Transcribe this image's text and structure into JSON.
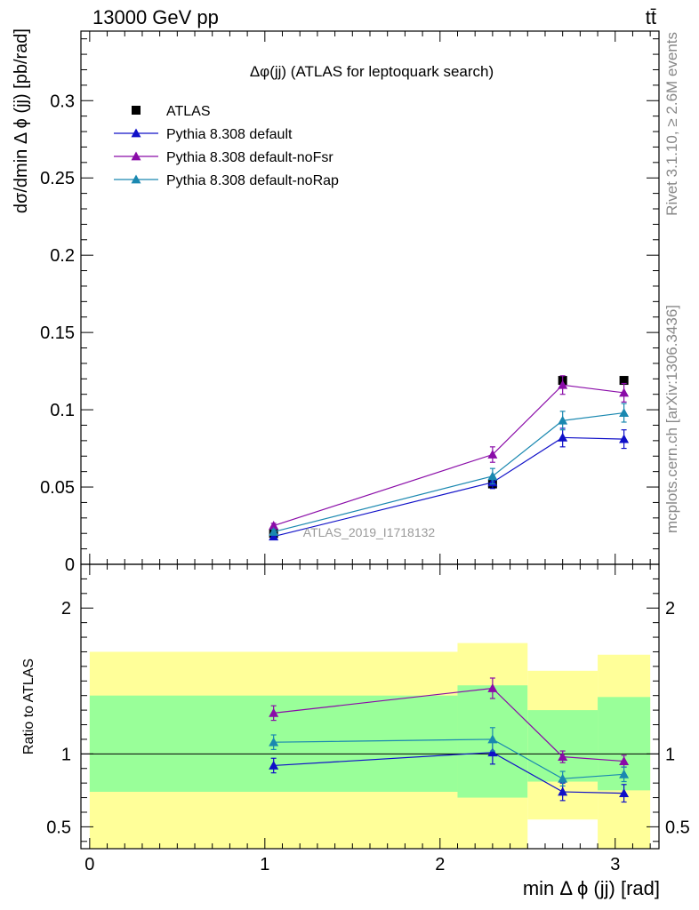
{
  "header": {
    "left": "13000 GeV pp",
    "right": "tt̄"
  },
  "side_labels": {
    "rivet": "Rivet 3.1.10, ≥ 2.6M events",
    "mcplots": "mcplots.cern.ch [arXiv:1306.3436]"
  },
  "chart_data": [
    {
      "type": "scatter",
      "panel": "main",
      "title": "Δφ(jj) (ATLAS for leptoquark search)",
      "xlabel": "min Δ ϕ (jj) [rad]",
      "ylabel": "dσ/dmin Δ ϕ (jj) [pb/rad]",
      "watermark": "ATLAS_2019_I1718132",
      "xlim": [
        -0.05,
        3.25
      ],
      "ylim": [
        0,
        0.345
      ],
      "x": [
        1.05,
        2.3,
        2.7,
        3.05
      ],
      "y_ticks": [
        0,
        0.05,
        0.1,
        0.15,
        0.2,
        0.25,
        0.3
      ],
      "y_tick_labels": [
        "0",
        "0.05",
        "0.1",
        "0.15",
        "0.2",
        "0.25",
        "0.3"
      ],
      "legend_position": "top-left",
      "series": [
        {
          "name": "ATLAS",
          "color": "#000000",
          "marker": "square",
          "line": false,
          "values": [
            0.02,
            0.052,
            0.119,
            0.119
          ]
        },
        {
          "name": "Pythia 8.308 default",
          "color": "#1010c8",
          "marker": "triangle",
          "line": true,
          "values": [
            0.018,
            0.053,
            0.082,
            0.081
          ],
          "errors": [
            0.0015,
            0.004,
            0.006,
            0.006
          ]
        },
        {
          "name": "Pythia 8.308 default-noFsr",
          "color": "#8a0ca8",
          "marker": "triangle",
          "line": true,
          "values": [
            0.025,
            0.071,
            0.116,
            0.111
          ],
          "errors": [
            0.0015,
            0.005,
            0.006,
            0.006
          ]
        },
        {
          "name": "Pythia 8.308 default-noRap",
          "color": "#1a88b0",
          "marker": "triangle",
          "line": true,
          "values": [
            0.021,
            0.057,
            0.093,
            0.098
          ],
          "errors": [
            0.0015,
            0.005,
            0.006,
            0.006
          ]
        }
      ]
    },
    {
      "type": "scatter",
      "panel": "ratio",
      "ylabel": "Ratio to ATLAS",
      "xlim": [
        -0.05,
        3.25
      ],
      "ylim": [
        0.35,
        2.3
      ],
      "x_ticks": [
        0,
        1,
        2,
        3
      ],
      "x_tick_labels": [
        "0",
        "1",
        "2",
        "3"
      ],
      "y_ticks": [
        0.5,
        1,
        2
      ],
      "y_tick_labels": [
        "0.5",
        "1",
        "2"
      ],
      "bins": [
        [
          0,
          2.1
        ],
        [
          2.1,
          2.5
        ],
        [
          2.5,
          2.9
        ],
        [
          2.9,
          3.2
        ]
      ],
      "band_inner": [
        [
          0.74,
          1.4
        ],
        [
          0.7,
          1.47
        ],
        [
          0.81,
          1.3
        ],
        [
          0.75,
          1.39
        ]
      ],
      "band_outer": [
        [
          0.35,
          1.7
        ],
        [
          0.35,
          1.76
        ],
        [
          0.55,
          1.57
        ],
        [
          0.35,
          1.68
        ]
      ],
      "x": [
        1.05,
        2.3,
        2.7,
        3.05
      ],
      "series": [
        {
          "name": "Pythia 8.308 default",
          "color": "#1010c8",
          "values": [
            0.92,
            1.01,
            0.74,
            0.73
          ],
          "errors": [
            0.05,
            0.08,
            0.06,
            0.06
          ]
        },
        {
          "name": "Pythia 8.308 default-noFsr",
          "color": "#8a0ca8",
          "values": [
            1.28,
            1.45,
            0.98,
            0.95
          ],
          "errors": [
            0.05,
            0.07,
            0.04,
            0.04
          ]
        },
        {
          "name": "Pythia 8.308 default-noRap",
          "color": "#1a88b0",
          "values": [
            1.08,
            1.1,
            0.83,
            0.86
          ],
          "errors": [
            0.05,
            0.08,
            0.05,
            0.05
          ]
        }
      ]
    }
  ]
}
